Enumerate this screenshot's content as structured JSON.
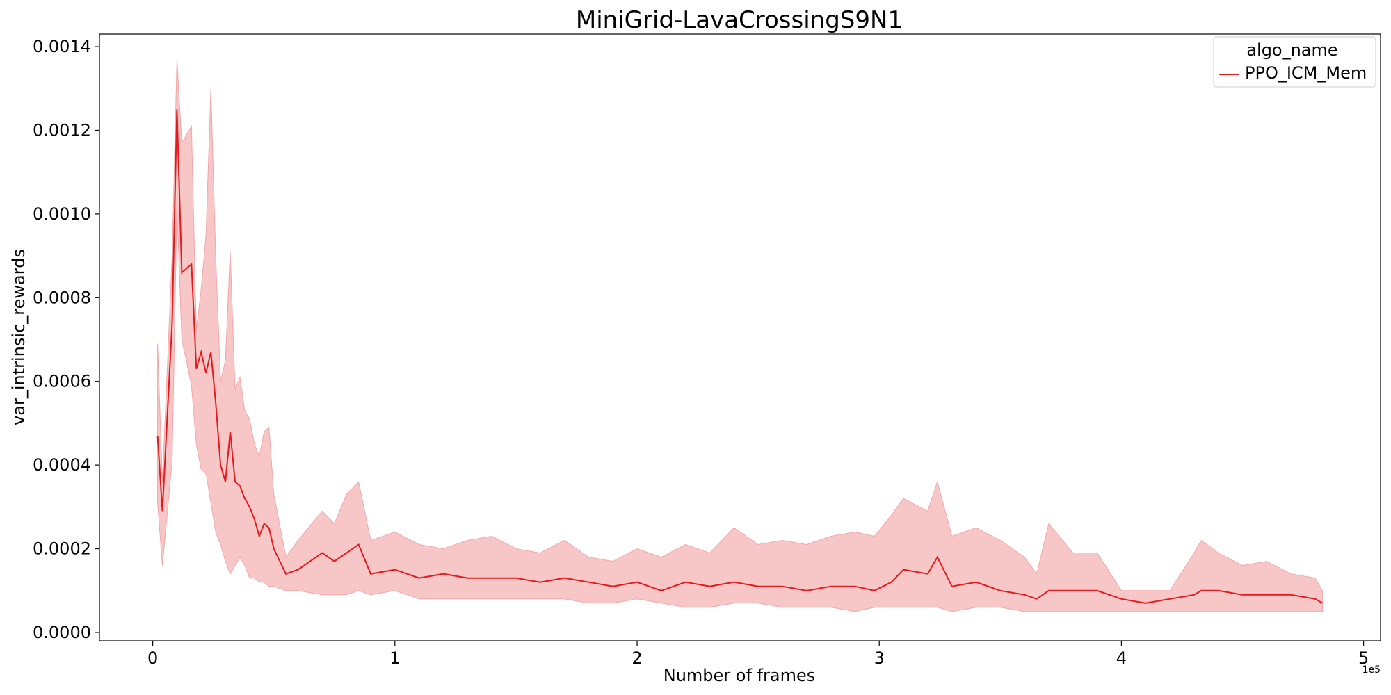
{
  "chart_data": {
    "type": "line",
    "title": "MiniGrid-LavaCrossingS9N1",
    "xlabel": "Number of frames",
    "ylabel": "var_intrinsic_rewards",
    "x_offset_label": "1e5",
    "xlim": [
      -0.22,
      5.07
    ],
    "ylim": [
      -2e-05,
      0.00143
    ],
    "x_ticks": [
      0,
      1,
      2,
      3,
      4,
      5
    ],
    "x_tick_labels": [
      "0",
      "1",
      "2",
      "3",
      "4",
      "5"
    ],
    "y_ticks": [
      0.0,
      0.0002,
      0.0004,
      0.0006,
      0.0008,
      0.001,
      0.0012,
      0.0014
    ],
    "y_tick_labels": [
      "0.0000",
      "0.0002",
      "0.0004",
      "0.0006",
      "0.0008",
      "0.0010",
      "0.0012",
      "0.0014"
    ],
    "grid": false,
    "legend": {
      "title": "algo_name",
      "position": "top-right"
    },
    "colors": {
      "line": "#e41a1c",
      "band": "#f7c6c7",
      "band_edge": "#f4a6a8"
    },
    "series": [
      {
        "name": "PPO_ICM_Mem",
        "x": [
          0.02,
          0.04,
          0.08,
          0.1,
          0.12,
          0.16,
          0.18,
          0.2,
          0.22,
          0.24,
          0.26,
          0.28,
          0.3,
          0.32,
          0.34,
          0.36,
          0.38,
          0.4,
          0.42,
          0.44,
          0.46,
          0.48,
          0.5,
          0.55,
          0.6,
          0.7,
          0.75,
          0.8,
          0.85,
          0.9,
          1.0,
          1.1,
          1.2,
          1.3,
          1.4,
          1.5,
          1.6,
          1.7,
          1.8,
          1.9,
          2.0,
          2.1,
          2.2,
          2.3,
          2.4,
          2.5,
          2.6,
          2.7,
          2.8,
          2.9,
          2.98,
          3.05,
          3.1,
          3.2,
          3.24,
          3.3,
          3.4,
          3.5,
          3.6,
          3.65,
          3.7,
          3.8,
          3.9,
          4.0,
          4.1,
          4.2,
          4.3,
          4.33,
          4.4,
          4.5,
          4.6,
          4.7,
          4.8,
          4.83
        ],
        "mean": [
          0.00047,
          0.00029,
          0.00074,
          0.00125,
          0.00086,
          0.00088,
          0.00063,
          0.00067,
          0.00062,
          0.00067,
          0.00055,
          0.0004,
          0.00036,
          0.00048,
          0.00036,
          0.00035,
          0.00032,
          0.0003,
          0.00027,
          0.00023,
          0.00026,
          0.00025,
          0.0002,
          0.00014,
          0.00015,
          0.00019,
          0.00017,
          0.00019,
          0.00021,
          0.00014,
          0.00015,
          0.00013,
          0.00014,
          0.00013,
          0.00013,
          0.00013,
          0.00012,
          0.00013,
          0.00012,
          0.00011,
          0.00012,
          0.0001,
          0.00012,
          0.00011,
          0.00012,
          0.00011,
          0.00011,
          0.0001,
          0.00011,
          0.00011,
          0.0001,
          0.00012,
          0.00015,
          0.00014,
          0.00018,
          0.00011,
          0.00012,
          0.0001,
          9e-05,
          8e-05,
          0.0001,
          0.0001,
          0.0001,
          8e-05,
          7e-05,
          8e-05,
          9e-05,
          0.0001,
          0.0001,
          9e-05,
          9e-05,
          9e-05,
          8e-05,
          7e-05
        ],
        "upper": [
          0.00069,
          0.00036,
          0.0009,
          0.00137,
          0.00117,
          0.00121,
          0.00072,
          0.00082,
          0.00095,
          0.0013,
          0.0009,
          0.0006,
          0.00065,
          0.00091,
          0.00058,
          0.00061,
          0.00053,
          0.00051,
          0.00045,
          0.00042,
          0.00048,
          0.00049,
          0.00033,
          0.00018,
          0.00022,
          0.00029,
          0.00026,
          0.00033,
          0.00036,
          0.00022,
          0.00024,
          0.00021,
          0.0002,
          0.00022,
          0.00023,
          0.0002,
          0.00019,
          0.00022,
          0.00018,
          0.00017,
          0.0002,
          0.00018,
          0.00021,
          0.00019,
          0.00025,
          0.00021,
          0.00022,
          0.00021,
          0.00023,
          0.00024,
          0.00023,
          0.00028,
          0.00032,
          0.00029,
          0.00036,
          0.00023,
          0.00025,
          0.00022,
          0.00018,
          0.00014,
          0.00026,
          0.00019,
          0.00019,
          0.0001,
          0.0001,
          0.0001,
          0.00019,
          0.00022,
          0.00019,
          0.00016,
          0.00017,
          0.00014,
          0.00013,
          0.0001
        ],
        "lower": [
          0.00031,
          0.00016,
          0.00041,
          0.00102,
          0.0007,
          0.00059,
          0.00045,
          0.00039,
          0.00038,
          0.00031,
          0.00024,
          0.00021,
          0.00017,
          0.00014,
          0.00016,
          0.00018,
          0.00016,
          0.00013,
          0.00013,
          0.00012,
          0.00012,
          0.00011,
          0.00011,
          0.0001,
          0.0001,
          9e-05,
          9e-05,
          9e-05,
          0.0001,
          9e-05,
          0.0001,
          8e-05,
          8e-05,
          8e-05,
          8e-05,
          8e-05,
          8e-05,
          8e-05,
          7e-05,
          7e-05,
          8e-05,
          7e-05,
          6e-05,
          6e-05,
          7e-05,
          7e-05,
          6e-05,
          6e-05,
          6e-05,
          5e-05,
          6e-05,
          6e-05,
          6e-05,
          6e-05,
          6e-05,
          5e-05,
          6e-05,
          6e-05,
          5e-05,
          5e-05,
          5e-05,
          5e-05,
          5e-05,
          5e-05,
          5e-05,
          5e-05,
          5e-05,
          5e-05,
          5e-05,
          5e-05,
          5e-05,
          5e-05,
          5e-05,
          5e-05
        ]
      }
    ]
  }
}
